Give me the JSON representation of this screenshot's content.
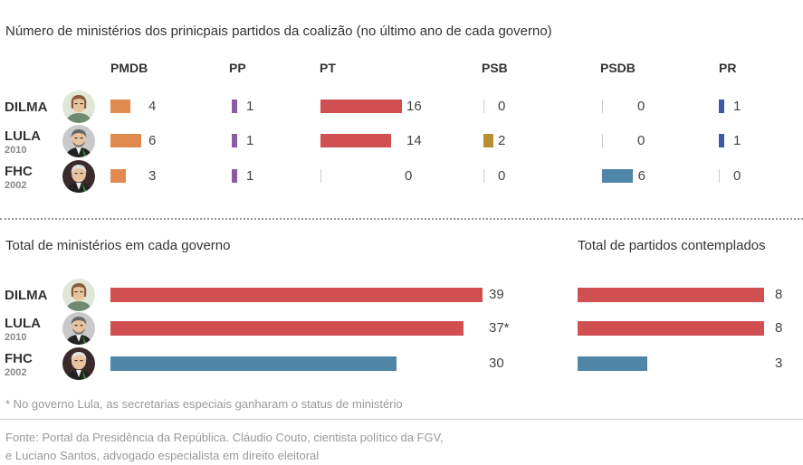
{
  "texts": {
    "title_top": "Número de ministérios dos prinicpais partidos da coalizão (no último ano de cada governo)",
    "title_total": "Total de ministérios em cada governo",
    "title_parties": "Total de partidos contemplados",
    "footnote": "* No governo Lula, as secretarias especiais ganharam o status de ministério",
    "source_line1": "Fonte: Portal da Presidência da República. Cláudio Couto, cientista político da FGV,",
    "source_line2": "e Luciano Santos, advogado especialista em direito eleitoral"
  },
  "presidents": [
    {
      "name": "DILMA",
      "year": ""
    },
    {
      "name": "LULA",
      "year": "2010"
    },
    {
      "name": "FHC",
      "year": "2002"
    }
  ],
  "colors": {
    "PMDB": "#e08a50",
    "PP": "#8c5a9e",
    "PT": "#d05052",
    "PSB": "#b89030",
    "PSDB": "#4f86a8",
    "PR": "#3f58a8",
    "total_pt_gov": "#d05052",
    "total_psdb_gov": "#4f86a8"
  },
  "chart_data": [
    {
      "type": "bar",
      "title": "Número de ministérios dos prinicpais partidos da coalizão (no último ano de cada governo)",
      "categories": [
        "DILMA",
        "LULA 2010",
        "FHC 2002"
      ],
      "series": [
        {
          "name": "PMDB",
          "values": [
            4,
            6,
            3
          ]
        },
        {
          "name": "PP",
          "values": [
            1,
            1,
            1
          ]
        },
        {
          "name": "PT",
          "values": [
            16,
            14,
            0
          ]
        },
        {
          "name": "PSB",
          "values": [
            0,
            2,
            0
          ]
        },
        {
          "name": "PSDB",
          "values": [
            0,
            0,
            6
          ]
        },
        {
          "name": "PR",
          "values": [
            1,
            1,
            0
          ]
        }
      ]
    },
    {
      "type": "bar",
      "title": "Total de ministérios em cada governo",
      "categories": [
        "DILMA",
        "LULA 2010",
        "FHC 2002"
      ],
      "values": [
        39,
        37,
        30
      ],
      "labels": [
        "39",
        "37*",
        "30"
      ]
    },
    {
      "type": "bar",
      "title": "Total de partidos contemplados",
      "categories": [
        "DILMA",
        "LULA 2010",
        "FHC 2002"
      ],
      "values": [
        8,
        8,
        3
      ],
      "labels": [
        "8",
        "8",
        "3"
      ]
    }
  ]
}
